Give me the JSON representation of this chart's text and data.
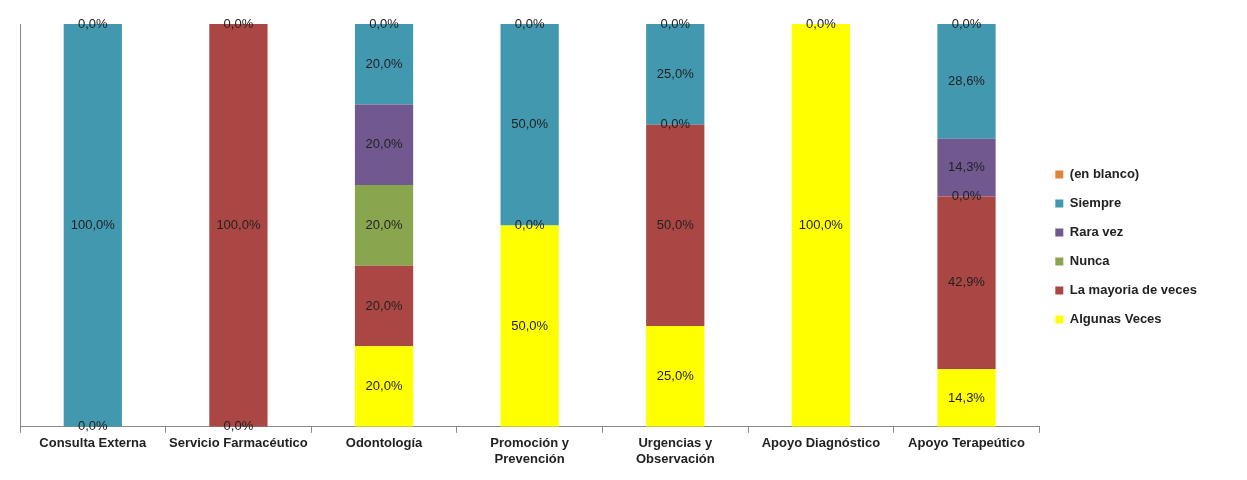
{
  "chart_data": {
    "type": "bar",
    "stacked": true,
    "categories": [
      "Consulta Externa",
      "Servicio Farmacéutico",
      "Odontología",
      "Promoción y Prevención",
      "Urgencias y Observación",
      "Apoyo Diagnóstico",
      "Apoyo Terapeútico"
    ],
    "ylim": [
      0,
      100
    ],
    "tick_labels": "x",
    "grid": false,
    "legend": "right",
    "series": [
      {
        "name": "Algunas Veces",
        "color": "#ffff00",
        "values": [
          null,
          null,
          20,
          50,
          25,
          100,
          14.3
        ],
        "value_labels": [
          null,
          null,
          "20,0%",
          "50,0%",
          "25,0%",
          "100,0%",
          "14,3%"
        ]
      },
      {
        "name": "La mayoria de veces",
        "color": "#aa4643",
        "values": [
          null,
          100,
          20,
          null,
          50,
          null,
          42.9
        ],
        "value_labels": [
          null,
          "100,0%",
          "20,0%",
          null,
          "50,0%",
          null,
          "42,9%"
        ]
      },
      {
        "name": "Nunca",
        "color": "#89a54e",
        "values": [
          null,
          null,
          20,
          null,
          null,
          null,
          null
        ],
        "value_labels": [
          null,
          null,
          "20,0%",
          null,
          null,
          null,
          null
        ]
      },
      {
        "name": "Rara vez",
        "color": "#71588f",
        "values": [
          null,
          null,
          20,
          null,
          null,
          null,
          14.3
        ],
        "value_labels": [
          null,
          null,
          "20,0%",
          null,
          null,
          null,
          "14,3%"
        ]
      },
      {
        "name": "Siempre",
        "color": "#4198af",
        "values": [
          100,
          null,
          20,
          50,
          25,
          null,
          28.6
        ],
        "value_labels": [
          "100,0%",
          null,
          "20,0%",
          "50,0%",
          "25,0%",
          null,
          "28,6%"
        ]
      },
      {
        "name": "(en blanco)",
        "color": "#db843d",
        "values": [
          null,
          null,
          null,
          null,
          null,
          null,
          null
        ]
      }
    ],
    "annotations": [
      {
        "text": "0,0%",
        "x": "Consulta Externa",
        "y": 0
      },
      {
        "text": "0,0%",
        "x": "Consulta Externa",
        "y": 100
      },
      {
        "text": "0,0%",
        "x": "Servicio Farmacéutico",
        "y": 0
      },
      {
        "text": "0,0%",
        "x": "Servicio Farmacéutico",
        "y": 100
      },
      {
        "text": "0,0%",
        "x": "Odontología",
        "y": 100
      },
      {
        "text": "0,0%",
        "x": "Promoción y Prevención",
        "y": 50
      },
      {
        "text": "0,0%",
        "x": "Promoción y Prevención",
        "y": 100
      },
      {
        "text": "0,0%",
        "x": "Urgencias y Observación",
        "y": 75
      },
      {
        "text": "0,0%",
        "x": "Urgencias y Observación",
        "y": 100
      },
      {
        "text": "0,0%",
        "x": "Apoyo Diagnóstico",
        "y": 100
      },
      {
        "text": "0,0%",
        "x": "Apoyo Terapeútico",
        "y": 57.2
      },
      {
        "text": "0,0%",
        "x": "Apoyo Terapeútico",
        "y": 100
      }
    ]
  }
}
